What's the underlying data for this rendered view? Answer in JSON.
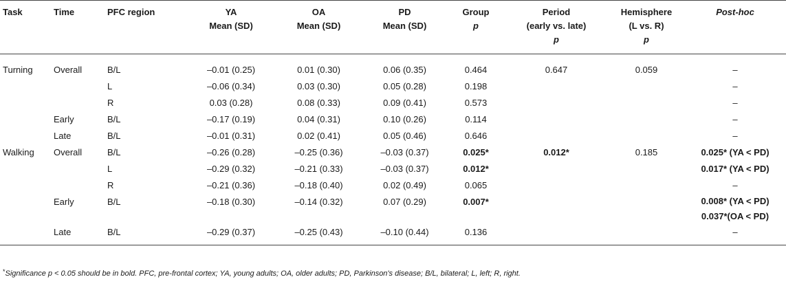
{
  "table": {
    "headers": {
      "task": "Task",
      "time": "Time",
      "region": "PFC region",
      "ya_l1": "YA",
      "ya_l2": "Mean (SD)",
      "oa_l1": "OA",
      "oa_l2": "Mean (SD)",
      "pd_l1": "PD",
      "pd_l2": "Mean (SD)",
      "group_l1": "Group",
      "group_l2": "p",
      "period_l1": "Period",
      "period_l2": "(early vs. late)",
      "period_l3": "p",
      "hemi_l1": "Hemisphere",
      "hemi_l2": "(L vs. R)",
      "hemi_l3": "p",
      "posthoc": "Post-hoc"
    },
    "rows": [
      {
        "task": "Turning",
        "time": "Overall",
        "region": "B/L",
        "ya": "–0.01 (0.25)",
        "oa": "0.01 (0.30)",
        "pd": "0.06 (0.35)",
        "group": "0.464",
        "period": "0.647",
        "hemi": "0.059",
        "posthoc": "–",
        "posthoc2": ""
      },
      {
        "task": "",
        "time": "",
        "region": "L",
        "ya": "–0.06 (0.34)",
        "oa": "0.03 (0.30)",
        "pd": "0.05 (0.28)",
        "group": "0.198",
        "period": "",
        "hemi": "",
        "posthoc": "–",
        "posthoc2": ""
      },
      {
        "task": "",
        "time": "",
        "region": "R",
        "ya": "0.03 (0.28)",
        "oa": "0.08 (0.33)",
        "pd": "0.09 (0.41)",
        "group": "0.573",
        "period": "",
        "hemi": "",
        "posthoc": "–",
        "posthoc2": ""
      },
      {
        "task": "",
        "time": "Early",
        "region": "B/L",
        "ya": "–0.17 (0.19)",
        "oa": "0.04 (0.31)",
        "pd": "0.10 (0.26)",
        "group": "0.114",
        "period": "",
        "hemi": "",
        "posthoc": "–",
        "posthoc2": ""
      },
      {
        "task": "",
        "time": "Late",
        "region": "B/L",
        "ya": "–0.01 (0.31)",
        "oa": "0.02 (0.41)",
        "pd": "0.05 (0.46)",
        "group": "0.646",
        "period": "",
        "hemi": "",
        "posthoc": "–",
        "posthoc2": ""
      },
      {
        "task": "Walking",
        "time": "Overall",
        "region": "B/L",
        "ya": "–0.26 (0.28)",
        "oa": "–0.25 (0.36)",
        "pd": "–0.03 (0.37)",
        "group": "0.025*",
        "period": "0.012*",
        "hemi": "0.185",
        "posthoc": "0.025* (YA < PD)",
        "posthoc2": ""
      },
      {
        "task": "",
        "time": "",
        "region": "L",
        "ya": "–0.29 (0.32)",
        "oa": "–0.21 (0.33)",
        "pd": "–0.03 (0.37)",
        "group": "0.012*",
        "period": "",
        "hemi": "",
        "posthoc": "0.017* (YA < PD)",
        "posthoc2": ""
      },
      {
        "task": "",
        "time": "",
        "region": "R",
        "ya": "–0.21 (0.36)",
        "oa": "–0.18 (0.40)",
        "pd": "0.02 (0.49)",
        "group": "0.065",
        "period": "",
        "hemi": "",
        "posthoc": "–",
        "posthoc2": ""
      },
      {
        "task": "",
        "time": "Early",
        "region": "B/L",
        "ya": "–0.18 (0.30)",
        "oa": "–0.14 (0.32)",
        "pd": "0.07 (0.29)",
        "group": "0.007*",
        "period": "",
        "hemi": "",
        "posthoc": "0.008* (YA < PD)",
        "posthoc2": "0.037*(OA < PD)"
      },
      {
        "task": "",
        "time": "Late",
        "region": "B/L",
        "ya": "–0.29 (0.37)",
        "oa": "–0.25 (0.43)",
        "pd": "–0.10 (0.44)",
        "group": "0.136",
        "period": "",
        "hemi": "",
        "posthoc": "–",
        "posthoc2": ""
      }
    ]
  },
  "footnote": {
    "star": "*",
    "text": "Significance p < 0.05 should be in bold. PFC, pre-frontal cortex; YA, young adults; OA, older adults; PD, Parkinson's disease; B/L, bilateral; L, left; R, right."
  }
}
